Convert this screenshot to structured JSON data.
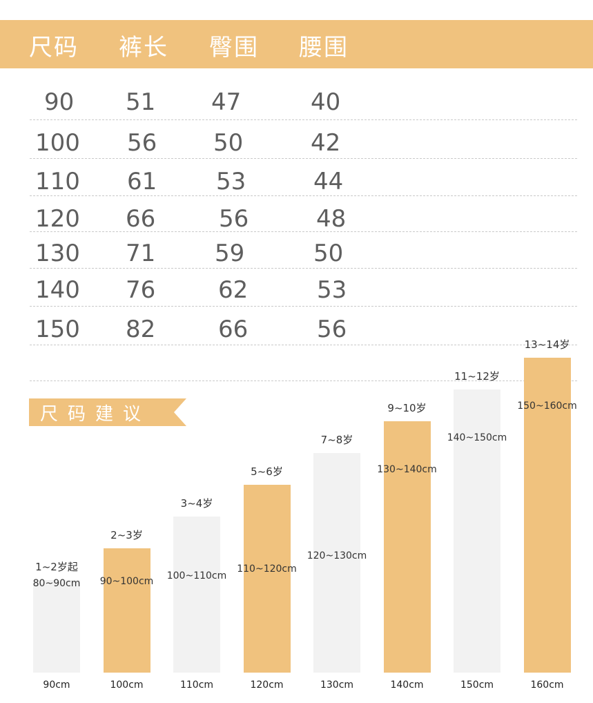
{
  "table": {
    "headers": [
      "尺码",
      "裤长",
      "臀围",
      "腰围"
    ],
    "rows": [
      [
        "90",
        "51",
        "47",
        "40"
      ],
      [
        "100",
        "56",
        "50",
        "42"
      ],
      [
        "110",
        "61",
        "53",
        "44"
      ],
      [
        "120",
        "66",
        "56",
        "48"
      ],
      [
        "130",
        "71",
        "59",
        "50"
      ],
      [
        "140",
        "76",
        "62",
        "53"
      ],
      [
        "150",
        "82",
        "66",
        "56"
      ]
    ]
  },
  "suggestion_title": "尺码建议",
  "colors": {
    "accent": "#f0c27e",
    "light_bar": "#f2f2f2",
    "text": "#5e5e5e"
  },
  "chart_data": {
    "type": "bar",
    "categories": [
      "90cm",
      "100cm",
      "110cm",
      "120cm",
      "130cm",
      "140cm",
      "150cm",
      "160cm"
    ],
    "age_labels": [
      "1~2岁起",
      "2~3岁",
      "3~4岁",
      "5~6岁",
      "7~8岁",
      "9~10岁",
      "11~12岁",
      "13~14岁"
    ],
    "range_labels": [
      "80~90cm",
      "90~100cm",
      "100~110cm",
      "110~120cm",
      "120~130cm",
      "130~140cm",
      "140~150cm",
      "150~160cm"
    ],
    "values": [
      90,
      100,
      110,
      120,
      130,
      140,
      150,
      160
    ],
    "highlight": [
      false,
      true,
      false,
      true,
      false,
      true,
      false,
      true
    ],
    "grid": false,
    "legend": "none"
  }
}
